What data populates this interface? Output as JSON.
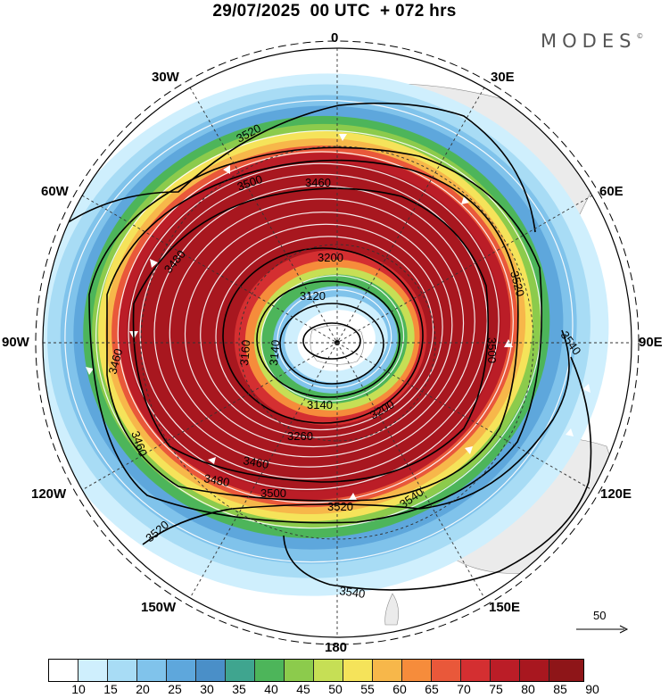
{
  "header": {
    "title": "29/07/2025  00 UTC  + 072 hrs",
    "brand": "MODES",
    "brand_mark": "©"
  },
  "longitude_labels": {
    "top": "0",
    "bottom": "180",
    "left": "90W",
    "right": "90E",
    "w30": "30W",
    "w60": "60W",
    "w120": "120W",
    "w150": "150W",
    "e30": "30E",
    "e60": "60E",
    "e120": "120E",
    "e150": "150E"
  },
  "contour_labels": [
    "3520",
    "3500",
    "3460",
    "3480",
    "3460",
    "3460",
    "3200",
    "3120",
    "3140",
    "3160",
    "3140",
    "3200",
    "3260",
    "3460",
    "3480",
    "3500",
    "3520",
    "3540",
    "3540",
    "3520",
    "3500",
    "3540",
    "3520"
  ],
  "reference_vector": {
    "value": "50"
  },
  "colorbar": {
    "colors": [
      "#ffffff",
      "#cfeffd",
      "#a8dcf5",
      "#80c3eb",
      "#5ea7dc",
      "#4a8fc8",
      "#3fa58f",
      "#4db55a",
      "#8ccb4c",
      "#c6df55",
      "#f5e35a",
      "#f7b74a",
      "#f68c3b",
      "#e9583a",
      "#d42f31",
      "#bb1d27",
      "#a8171f",
      "#8e1518"
    ],
    "ticks": [
      "10",
      "15",
      "20",
      "25",
      "30",
      "35",
      "40",
      "45",
      "50",
      "55",
      "60",
      "65",
      "70",
      "75",
      "80",
      "85",
      "90"
    ]
  },
  "colors": {
    "land": "#ebebeb",
    "jet_core": "#a8171f",
    "contour": "#000000",
    "streamline": "#ffffff"
  }
}
